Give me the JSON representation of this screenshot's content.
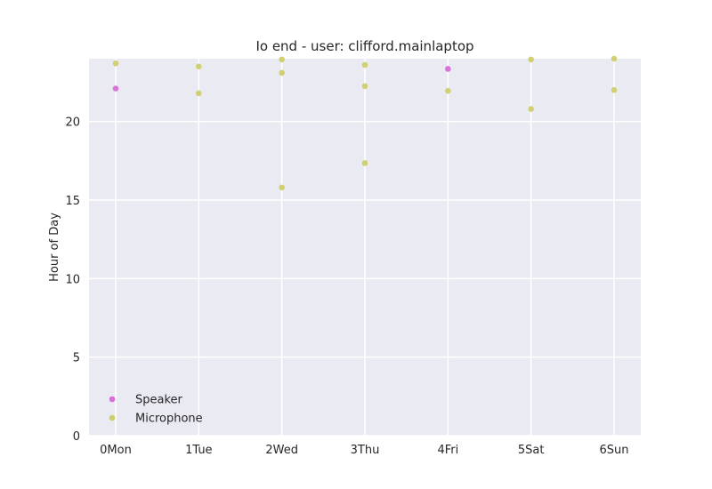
{
  "chart_data": {
    "type": "scatter",
    "title": "Io end - user: clifford.mainlaptop",
    "xlabel": "",
    "ylabel": "Hour of Day",
    "categories": [
      "0Mon",
      "1Tue",
      "2Wed",
      "3Thu",
      "4Fri",
      "5Sat",
      "6Sun"
    ],
    "ylim": [
      0,
      24
    ],
    "yticks": [
      "0",
      "5",
      "10",
      "15",
      "20"
    ],
    "grid": true,
    "legend_position": "lower-left",
    "series": [
      {
        "name": "Speaker",
        "color": "#d86ed8",
        "points": [
          {
            "x": "0Mon",
            "y": 22.1
          },
          {
            "x": "4Fri",
            "y": 23.35
          }
        ]
      },
      {
        "name": "Microphone",
        "color": "#cfcf6a",
        "points": [
          {
            "x": "0Mon",
            "y": 23.7
          },
          {
            "x": "1Tue",
            "y": 23.5
          },
          {
            "x": "1Tue",
            "y": 21.8
          },
          {
            "x": "2Wed",
            "y": 23.95
          },
          {
            "x": "2Wed",
            "y": 23.1
          },
          {
            "x": "2Wed",
            "y": 15.8
          },
          {
            "x": "3Thu",
            "y": 23.6
          },
          {
            "x": "3Thu",
            "y": 22.25
          },
          {
            "x": "3Thu",
            "y": 17.35
          },
          {
            "x": "4Fri",
            "y": 21.95
          },
          {
            "x": "5Sat",
            "y": 23.95
          },
          {
            "x": "5Sat",
            "y": 20.8
          },
          {
            "x": "6Sun",
            "y": 24.0
          },
          {
            "x": "6Sun",
            "y": 22.0
          }
        ]
      }
    ]
  }
}
